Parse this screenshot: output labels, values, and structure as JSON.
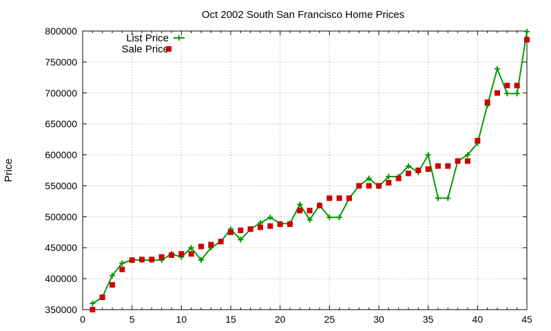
{
  "chart_data": {
    "type": "line",
    "title": "Oct 2002 South San Francisco Home Prices",
    "xlabel": "",
    "ylabel": "Price",
    "xlim": [
      0,
      45
    ],
    "ylim": [
      350000,
      800000
    ],
    "xticks": [
      0,
      5,
      10,
      15,
      20,
      25,
      30,
      35,
      40,
      45
    ],
    "yticks": [
      350000,
      400000,
      450000,
      500000,
      550000,
      600000,
      650000,
      700000,
      750000,
      800000
    ],
    "grid": true,
    "legend_position": "top-left",
    "series": [
      {
        "name": "List Price",
        "style": "line-points",
        "color": "#009900",
        "x": [
          1,
          2,
          3,
          4,
          5,
          6,
          7,
          8,
          9,
          10,
          11,
          12,
          13,
          14,
          15,
          16,
          17,
          18,
          19,
          20,
          21,
          22,
          23,
          24,
          25,
          26,
          27,
          28,
          29,
          30,
          31,
          32,
          33,
          34,
          35,
          36,
          37,
          38,
          39,
          40,
          41,
          42,
          43,
          44,
          45
        ],
        "values": [
          360000,
          370000,
          405000,
          425000,
          430000,
          430000,
          430000,
          430000,
          440000,
          435000,
          450000,
          430000,
          450000,
          460000,
          480000,
          463000,
          480000,
          490000,
          499000,
          489000,
          489000,
          520000,
          495000,
          519000,
          499000,
          499000,
          530000,
          550000,
          562000,
          549000,
          565000,
          565000,
          582000,
          572000,
          600000,
          530000,
          530000,
          590000,
          600000,
          619000,
          680000,
          739000,
          699000,
          699000,
          799000
        ]
      },
      {
        "name": "Sale Price",
        "style": "points",
        "color": "#cc0000",
        "x": [
          1,
          2,
          3,
          4,
          5,
          6,
          7,
          8,
          9,
          10,
          11,
          12,
          13,
          14,
          15,
          16,
          17,
          18,
          19,
          20,
          21,
          22,
          23,
          24,
          25,
          26,
          27,
          28,
          29,
          30,
          31,
          32,
          33,
          34,
          35,
          36,
          37,
          38,
          39,
          40,
          41,
          42,
          43,
          44,
          45
        ],
        "values": [
          350000,
          370000,
          390000,
          415000,
          430000,
          431000,
          431000,
          435000,
          438000,
          440000,
          440000,
          452000,
          455000,
          460000,
          475000,
          478000,
          480000,
          483000,
          485000,
          488000,
          488000,
          510000,
          510000,
          518000,
          530000,
          530000,
          530000,
          550000,
          550000,
          550000,
          555000,
          562000,
          570000,
          575000,
          577000,
          582000,
          582000,
          590000,
          590000,
          623000,
          685000,
          700000,
          712000,
          712000,
          786000
        ]
      }
    ]
  }
}
